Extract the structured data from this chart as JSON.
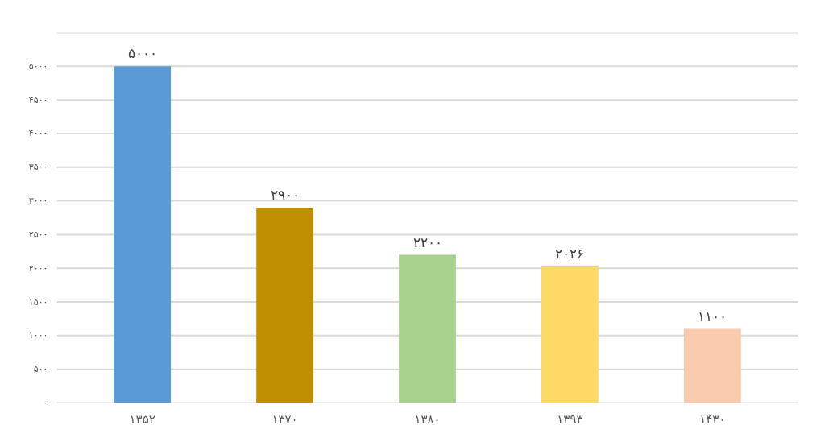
{
  "chart_data": {
    "type": "bar",
    "categories": [
      "۱۳۵۲",
      "۱۳۷۰",
      "۱۳۸۰",
      "۱۳۹۳",
      "۱۴۳۰"
    ],
    "values": [
      5000,
      2900,
      2200,
      2026,
      1100
    ],
    "colors": [
      "#5b9bd5",
      "#bf8f00",
      "#a9d18e",
      "#ffd966",
      "#f8cbad"
    ],
    "value_labels": [
      "۵۰۰۰",
      "۲۹۰۰",
      "۲۲۰۰",
      "۲۰۲۶",
      "۱۱۰۰"
    ],
    "ylim": [
      0,
      5500
    ],
    "yticks": [
      {
        "value": 0,
        "label": "۰"
      },
      {
        "value": 500,
        "label": "۵۰۰"
      },
      {
        "value": 1000,
        "label": "۱۰۰۰"
      },
      {
        "value": 1500,
        "label": "۱۵۰۰"
      },
      {
        "value": 2000,
        "label": "۲۰۰۰"
      },
      {
        "value": 2500,
        "label": "۲۵۰۰"
      },
      {
        "value": 3000,
        "label": "۳۰۰۰"
      },
      {
        "value": 3500,
        "label": "۳۵۰۰"
      },
      {
        "value": 4000,
        "label": "۴۰۰۰"
      },
      {
        "value": 4500,
        "label": "۴۵۰۰"
      },
      {
        "value": 5000,
        "label": "۵۰۰۰"
      },
      {
        "value": 5500,
        "label": null
      }
    ],
    "grid": "y"
  }
}
